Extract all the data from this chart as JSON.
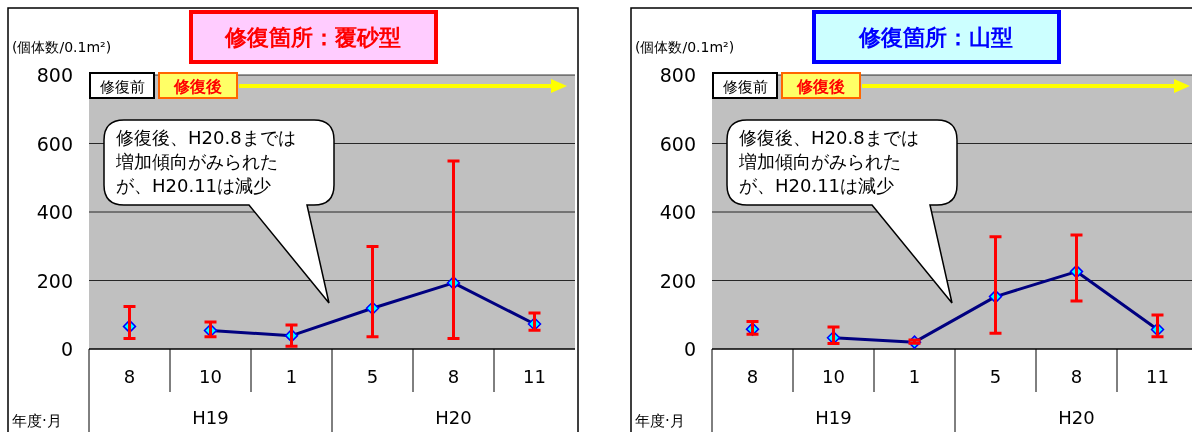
{
  "chart_data": [
    {
      "type": "line",
      "title": "修復箇所：覆砂型",
      "ylabel": "(個体数/0.1m²)",
      "xlabel": "年度·月",
      "categories": [
        "8",
        "10",
        "1",
        "5",
        "8",
        "11"
      ],
      "ylim": [
        0,
        800
      ],
      "yticks": [
        0,
        200,
        400,
        600,
        800
      ],
      "grid": "y",
      "marker": "diamond",
      "line_style": "solid",
      "series": [
        {
          "type": "scatter",
          "color": "#00ffff",
          "values": [
            66,
            null,
            null,
            null,
            null,
            null
          ],
          "errors": [
            [
              31,
              124
            ],
            null,
            null,
            null,
            null,
            null
          ]
        },
        {
          "type": "line",
          "color": "#000080",
          "values": [
            null,
            54,
            39,
            119,
            193,
            73
          ],
          "errors": [
            null,
            [
              36,
              79
            ],
            [
              8,
              70
            ],
            [
              36,
              299
            ],
            [
              31,
              549
            ],
            [
              55,
              105
            ]
          ]
        }
      ],
      "annotations": [
        "修復前",
        "修復後",
        "修復後、H20.8までは",
        "増加傾向がみられた",
        "が、H20.11は減少",
        "H19",
        "H20"
      ]
    },
    {
      "type": "line",
      "title": "修復箇所：山型",
      "ylabel": "(個体数/0.1m²)",
      "xlabel": "年度·月",
      "categories": [
        "8",
        "10",
        "1",
        "5",
        "8",
        "11"
      ],
      "ylim": [
        0,
        800
      ],
      "yticks": [
        0,
        200,
        400,
        600,
        800
      ],
      "grid": "y",
      "marker": "diamond",
      "line_style": "solid",
      "series": [
        {
          "type": "scatter",
          "color": "#00ffff",
          "values": [
            58,
            null,
            null,
            null,
            null,
            null
          ],
          "errors": [
            [
              43,
              80
            ],
            null,
            null,
            null,
            null,
            null
          ]
        },
        {
          "type": "line",
          "color": "#000080",
          "values": [
            null,
            33,
            20,
            153,
            226,
            57
          ],
          "errors": [
            null,
            [
              16,
              64
            ],
            [
              17,
              26
            ],
            [
              46,
              328
            ],
            [
              140,
              333
            ],
            [
              36,
              99
            ]
          ]
        }
      ],
      "annotations": [
        "修復前",
        "修復後",
        "修復後、H20.8までは",
        "増加傾向がみられた",
        "が、H20.11は減少",
        "H19",
        "H20"
      ]
    }
  ]
}
